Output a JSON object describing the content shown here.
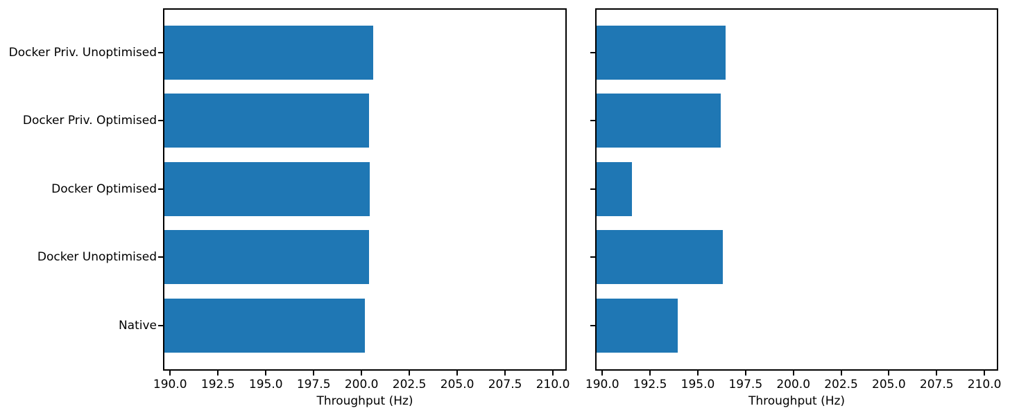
{
  "figure": {
    "background_color": "#ffffff",
    "bar_color": "#1f77b4",
    "spine_color": "#000000",
    "text_color": "#000000"
  },
  "chart_data": [
    {
      "type": "bar",
      "orientation": "horizontal",
      "title": "",
      "xlabel": "Throughput (Hz)",
      "ylabel": "",
      "categories_top_to_bottom": [
        "Docker Priv. Unoptimised",
        "Docker Priv. Optimised",
        "Docker Optimised",
        "Docker Unoptimised",
        "Native"
      ],
      "values_top_to_bottom": [
        200.6,
        200.38,
        200.43,
        200.41,
        200.17
      ],
      "xlim": [
        189.7,
        210.65
      ],
      "xticks": [
        190.0,
        192.5,
        195.0,
        197.5,
        200.0,
        202.5,
        205.0,
        207.5,
        210.0
      ],
      "xtick_labels": [
        "190.0",
        "192.5",
        "195.0",
        "197.5",
        "200.0",
        "202.5",
        "205.0",
        "207.5",
        "210.0"
      ],
      "bar_color": "#1f77b4",
      "grid": false,
      "legend": null,
      "show_category_labels": true
    },
    {
      "type": "bar",
      "orientation": "horizontal",
      "title": "",
      "xlabel": "Throughput (Hz)",
      "ylabel": "",
      "categories_top_to_bottom": [
        "Docker Priv. Unoptimised",
        "Docker Priv. Optimised",
        "Docker Optimised",
        "Docker Unoptimised",
        "Native"
      ],
      "values_top_to_bottom": [
        196.45,
        196.2,
        191.55,
        196.3,
        193.95
      ],
      "xlim": [
        189.7,
        210.65
      ],
      "xticks": [
        190.0,
        192.5,
        195.0,
        197.5,
        200.0,
        202.5,
        205.0,
        207.5,
        210.0
      ],
      "xtick_labels": [
        "190.0",
        "192.5",
        "195.0",
        "197.5",
        "200.0",
        "202.5",
        "205.0",
        "207.5",
        "210.0"
      ],
      "bar_color": "#1f77b4",
      "grid": false,
      "legend": null,
      "show_category_labels": false
    }
  ]
}
